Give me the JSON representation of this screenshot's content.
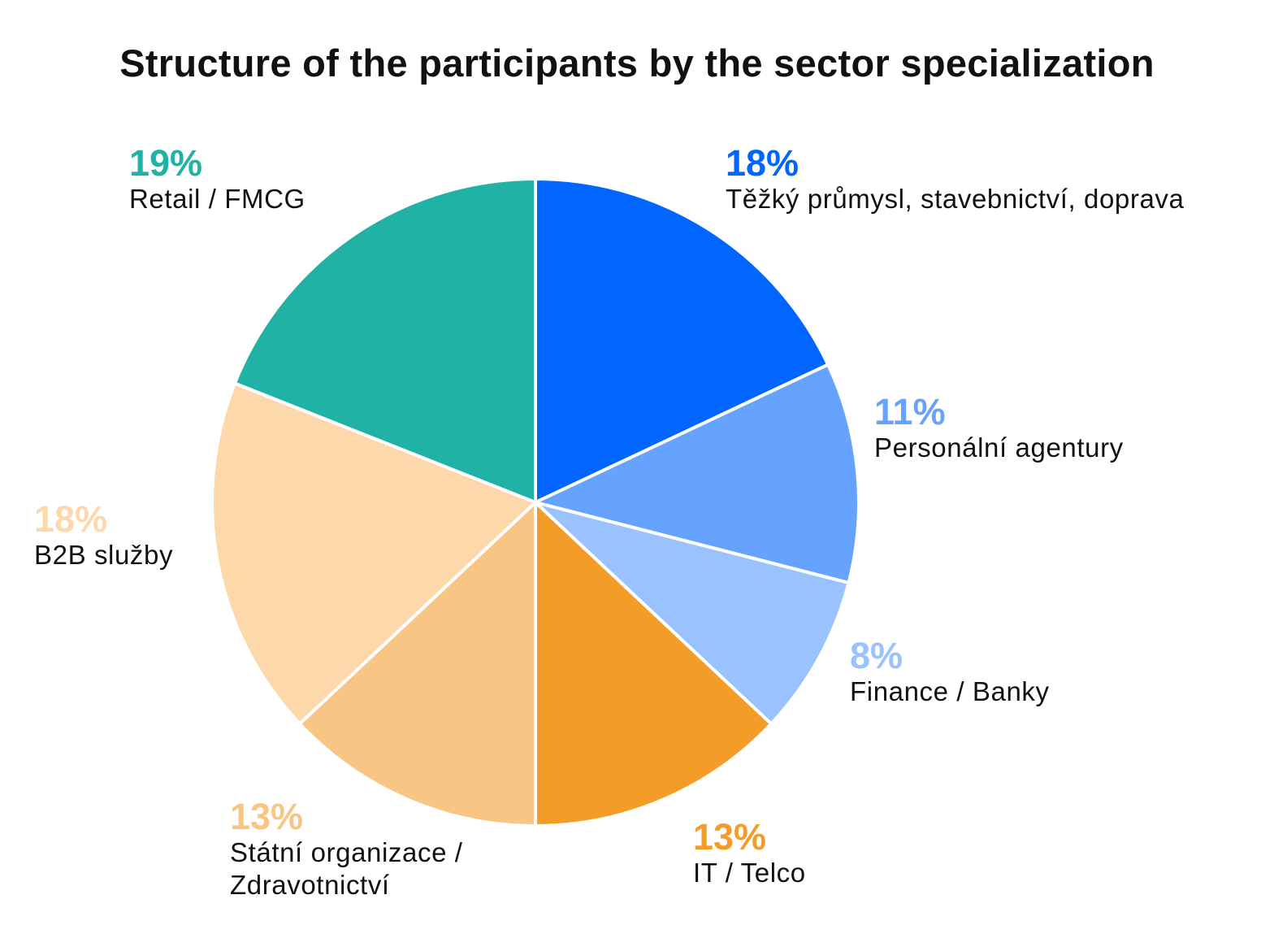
{
  "chart_data": {
    "type": "pie",
    "title": "Structure of the participants by the sector specialization",
    "slices": [
      {
        "name": "Těžký průmysl, stavebnictví, doprava",
        "value": 18,
        "value_label": "18%",
        "color": "#0066FF"
      },
      {
        "name": "Personální agentury",
        "value": 11,
        "value_label": "11%",
        "color": "#66A3FF"
      },
      {
        "name": "Finance / Banky",
        "value": 8,
        "value_label": "8%",
        "color": "#99C2FF"
      },
      {
        "name": "IT / Telco",
        "value": 13,
        "value_label": "13%",
        "color": "#F39C27"
      },
      {
        "name": "Státní organizace / Zdravotnictví",
        "value": 13,
        "value_label": "13%",
        "color": "#F8C585"
      },
      {
        "name": "B2B služby",
        "value": 18,
        "value_label": "18%",
        "color": "#FCD8AB"
      },
      {
        "name": "Retail / FMCG",
        "value": 19,
        "value_label": "19%",
        "color": "#20B2A4"
      }
    ],
    "start_angle": "top",
    "direction": "clockwise",
    "legend": "none"
  }
}
